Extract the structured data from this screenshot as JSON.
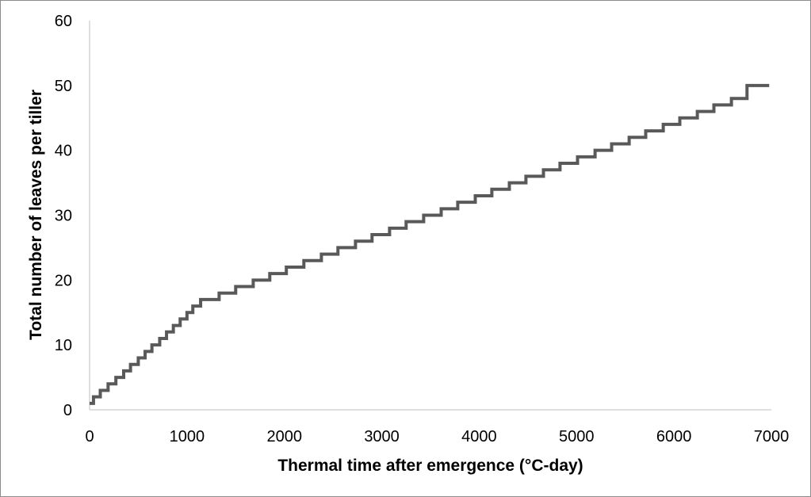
{
  "chart_data": {
    "type": "line",
    "step": true,
    "title": "",
    "xlabel": "Thermal time after emergence (°C-day)",
    "ylabel": "Total number of leaves per tiller",
    "xlim": [
      0,
      7000
    ],
    "ylim": [
      0,
      60
    ],
    "x_ticks": [
      0,
      1000,
      2000,
      3000,
      4000,
      5000,
      6000,
      7000
    ],
    "y_ticks": [
      0,
      10,
      20,
      30,
      40,
      50,
      60
    ],
    "grid": false,
    "legend": "none",
    "line_color": "#595959",
    "series": [
      {
        "x": [
          0,
          40,
          110,
          190,
          270,
          350,
          420,
          500,
          570,
          640,
          720,
          790,
          860,
          930,
          1000,
          1060,
          1140,
          1330,
          1500,
          1680,
          1850,
          2020,
          2200,
          2380,
          2550,
          2730,
          2900,
          3080,
          3250,
          3430,
          3610,
          3780,
          3960,
          4130,
          4310,
          4480,
          4660,
          4830,
          5010,
          5190,
          5360,
          5540,
          5710,
          5890,
          6060,
          6240,
          6410,
          6590,
          6750
        ],
        "y": [
          1,
          2,
          3,
          4,
          5,
          6,
          7,
          8,
          9,
          10,
          11,
          12,
          13,
          14,
          15,
          16,
          17,
          18,
          19,
          20,
          21,
          22,
          23,
          24,
          25,
          26,
          27,
          28,
          29,
          30,
          31,
          32,
          33,
          34,
          35,
          36,
          37,
          38,
          39,
          40,
          41,
          42,
          43,
          44,
          45,
          46,
          47,
          48,
          50
        ]
      }
    ]
  }
}
